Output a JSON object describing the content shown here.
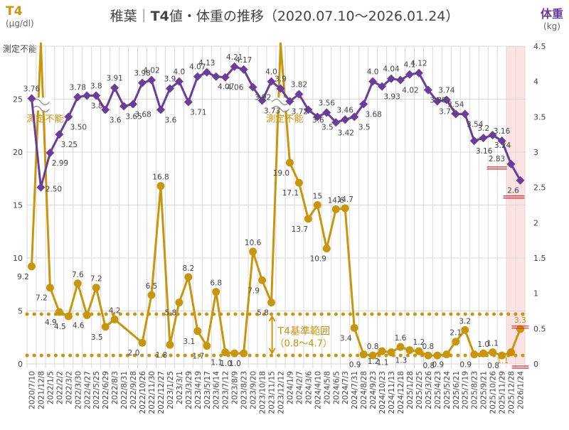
{
  "header": {
    "title_prefix": "稚葉｜",
    "title_bold": "T4",
    "title_suffix": "値・体重の推移（2020.07.10～2026.01.24）",
    "left_axis_title": "T4",
    "left_axis_unit": "(μg/dl)",
    "left_axis_top_label": "測定不能",
    "right_axis_title": "体重",
    "right_axis_unit": "(kg)"
  },
  "colors": {
    "t4": "#C8960C",
    "weight": "#6A3D9A",
    "highlight_band": "#FDE2E4",
    "red_underline": "#E02020",
    "grid": "#D9D9D9"
  },
  "annotations": {
    "unmeasurable_label": "測定不能",
    "reference_range_label": "T4基準範囲",
    "reference_range_values": "（0.8～4.7）"
  },
  "chart_data": {
    "type": "line",
    "title": "稚葉｜T4値・体重の推移（2020.07.10～2026.01.24）",
    "xlabel": "",
    "categories": [
      "2020/7/10",
      "2021/12/8",
      "2022/1/5",
      "2022/2/2",
      "2022/3/2",
      "2022/3/30",
      "2022/4/27",
      "2022/5/25",
      "2022/6/29",
      "2022/8/3",
      "2022/8/31",
      "2022/9/28",
      "2022/10/26",
      "2022/11/30",
      "2022/12/27",
      "2023/1/25",
      "2023/3/1",
      "2023/3/29",
      "2023/4/19",
      "2023/5/17",
      "2023/6/14",
      "2023/7/12",
      "2023/8/9",
      "2023/8/23",
      "2023/9/20",
      "2023/10/18",
      "2023/11/15",
      "2023/12/12",
      "2024/1/9",
      "2024/2/7",
      "2024/3/6",
      "2024/4/10",
      "2024/5/8",
      "2024/6/5",
      "2024/7/3",
      "2024/7/31",
      "2024/8/28",
      "2024/9/23",
      "2024/10/23",
      "2024/11/13",
      "2024/12/18",
      "2025/1/28",
      "2025/2/25",
      "2025/3/26",
      "2025/4/23",
      "2025/5/24",
      "2025/6/21",
      "2025/7/19",
      "2025/8/23",
      "2025/9/21",
      "2025/10/26",
      "2025/11/29",
      "2025/12/28",
      "2026/1/24"
    ],
    "left_axis": {
      "label": "T4 (μg/dl)",
      "ylim": [
        0,
        30
      ],
      "ticks": [
        0,
        5,
        10,
        15,
        20,
        25
      ],
      "top_label": "測定不能"
    },
    "right_axis": {
      "label": "体重 (kg)",
      "ylim": [
        0,
        4.5
      ],
      "ticks": [
        0,
        0.5,
        1,
        1.5,
        2,
        2.5,
        3,
        3.5,
        4,
        4.5
      ]
    },
    "reference_range": {
      "name": "T4基準範囲",
      "low": 0.8,
      "high": 4.7
    },
    "highlight_categories": [
      "2025/12/28",
      "2026/1/24"
    ],
    "grid": true,
    "series": [
      {
        "name": "T4",
        "axis": "left",
        "marker": "circle",
        "values": [
          9.2,
          null,
          7.2,
          4.9,
          4.5,
          7.6,
          4.6,
          7.2,
          3.5,
          4.2,
          null,
          null,
          2.0,
          6.5,
          16.8,
          1.8,
          5.8,
          8.2,
          3.1,
          1.7,
          6.8,
          1.1,
          1.0,
          1.0,
          10.6,
          7.9,
          5.8,
          null,
          19.0,
          17.1,
          13.7,
          15,
          10.9,
          14.6,
          14.7,
          3.4,
          0.9,
          0.8,
          1.2,
          1.1,
          1.6,
          1.3,
          1.2,
          0.8,
          0.8,
          0.9,
          2.1,
          3.2,
          0.9,
          1.0,
          1.1,
          0.8,
          1.1,
          3.3
        ],
        "labels": [
          "9.2",
          "測定不能",
          "7.2",
          "4.9",
          "4.5",
          "7.6",
          "4.6",
          "7.2",
          "3.5",
          "4.2",
          "",
          "",
          "2.0",
          "6.5",
          "16.8",
          "1.8",
          "5.8",
          "8.2",
          "3.1",
          "1.7",
          "6.8",
          "1.1",
          "1.0",
          "1.0",
          "10.6",
          "7.9",
          "5.8",
          "測定不能",
          "19.0",
          "17.1",
          "13.7",
          "15",
          "10.9",
          "14.6",
          "14.7",
          "3.4",
          "0.9",
          "0.8",
          "1.2",
          "1.1",
          "1.6",
          "1.3",
          "1.2",
          "0.8",
          "0.8",
          "0.9",
          "2.1",
          "3.2",
          "0.9",
          "1.0",
          "1.1",
          "0.8",
          "1.1",
          "3.3"
        ],
        "unmeasurable_indices": [
          1,
          27
        ]
      },
      {
        "name": "体重",
        "axis": "right",
        "marker": "diamond",
        "values": [
          3.76,
          2.5,
          2.99,
          3.25,
          3.5,
          3.78,
          3.8,
          3.8,
          3.6,
          3.91,
          3.65,
          3.68,
          3.98,
          4.02,
          3.6,
          3.9,
          4.0,
          3.71,
          4.07,
          4.13,
          4.07,
          4.06,
          4.21,
          4.17,
          3.92,
          3.73,
          4.0,
          3.9,
          3.72,
          3.82,
          3.6,
          3.5,
          3.56,
          3.42,
          3.46,
          3.5,
          3.68,
          4.0,
          3.93,
          4.04,
          4.02,
          4.1,
          4.12,
          3.88,
          3.72,
          3.74,
          3.54,
          3.54,
          3.16,
          3.2,
          3.24,
          3.16,
          2.83,
          2.6
        ],
        "labels": [
          "3.76",
          "2.50",
          "2.99",
          "3.25",
          "3.50",
          "3.78",
          "3.8",
          "3.8",
          "3.6",
          "3.91",
          "3.65",
          "3.68",
          "3.98",
          "4.02",
          "3.6",
          "3.9",
          "4.0",
          "3.71",
          "4.07",
          "4.13",
          "4.07",
          "4.06",
          "4.21",
          "4.17",
          "3.92",
          "3.73",
          "4.0",
          "3.9",
          "3.72",
          "3.82",
          "3.6",
          "3.5",
          "3.56",
          "3.42",
          "3.46",
          "3.5",
          "3.68",
          "4.0",
          "3.93",
          "4.04",
          "4.02",
          "4.1",
          "4.12",
          "3.88",
          "3.72",
          "3.74",
          "3.54",
          "3.54",
          "3.16",
          "3.2",
          "3.24",
          "3.16",
          "2.83",
          "2.6"
        ]
      }
    ],
    "underlined_labels": [
      "体重 2.83",
      "体重 2.6",
      "T4 3.3",
      "T4 1.1"
    ],
    "legend": "none"
  }
}
